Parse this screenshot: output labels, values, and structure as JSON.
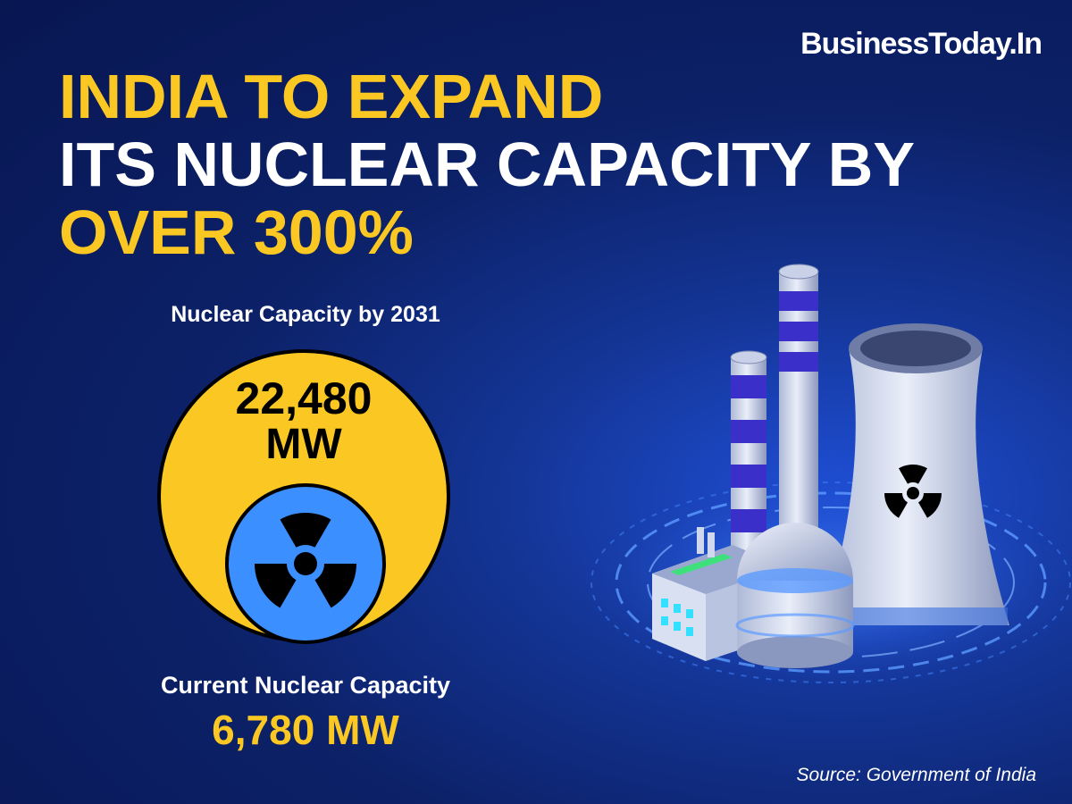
{
  "brand": "BusinessToday.In",
  "headline": {
    "line1": "INDIA TO EXPAND",
    "line2": "ITS NUCLEAR CAPACITY BY",
    "line3": "OVER 300%"
  },
  "future": {
    "label": "Nuclear Capacity by 2031",
    "value": "22,480",
    "unit": "MW"
  },
  "current": {
    "label": "Current Nuclear Capacity",
    "value": "6,780 MW"
  },
  "source": "Source: Government of India",
  "colors": {
    "background": "#0c2168",
    "accent_yellow": "#fbc823",
    "circle_blue": "#3c8fff",
    "text": "#ffffff"
  },
  "icons": [
    "radiation-icon",
    "nuclear-plant-illustration"
  ]
}
